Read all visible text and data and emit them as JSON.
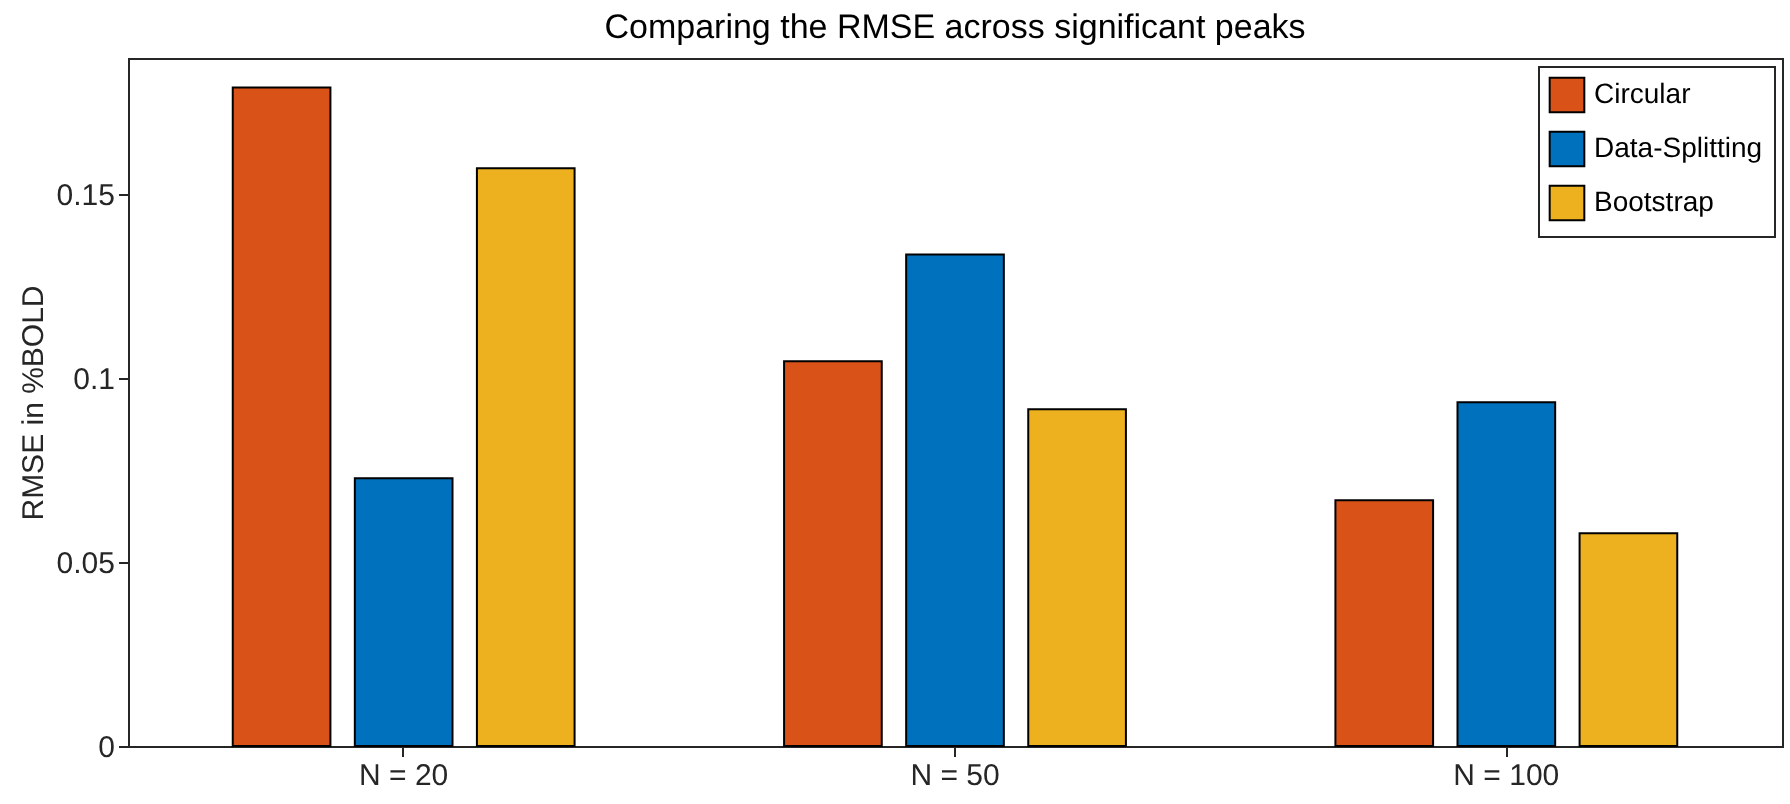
{
  "chart_data": {
    "type": "bar",
    "title": "Comparing the RMSE across significant peaks",
    "ylabel": "RMSE in %BOLD",
    "categories": [
      "N = 20",
      "N = 50",
      "N = 100"
    ],
    "series": [
      {
        "name": "Circular",
        "color": "#d95319",
        "values": [
          0.179,
          0.1046,
          0.0668
        ]
      },
      {
        "name": "Data-Splitting",
        "color": "#0072bd",
        "values": [
          0.0728,
          0.1336,
          0.0934
        ]
      },
      {
        "name": "Bootstrap",
        "color": "#edb120",
        "values": [
          0.157,
          0.0915,
          0.0578
        ]
      }
    ],
    "ylim": [
      0,
      0.187
    ],
    "yticks": [
      0,
      0.05,
      0.1,
      0.15
    ],
    "grid": false,
    "legend": "top right"
  }
}
